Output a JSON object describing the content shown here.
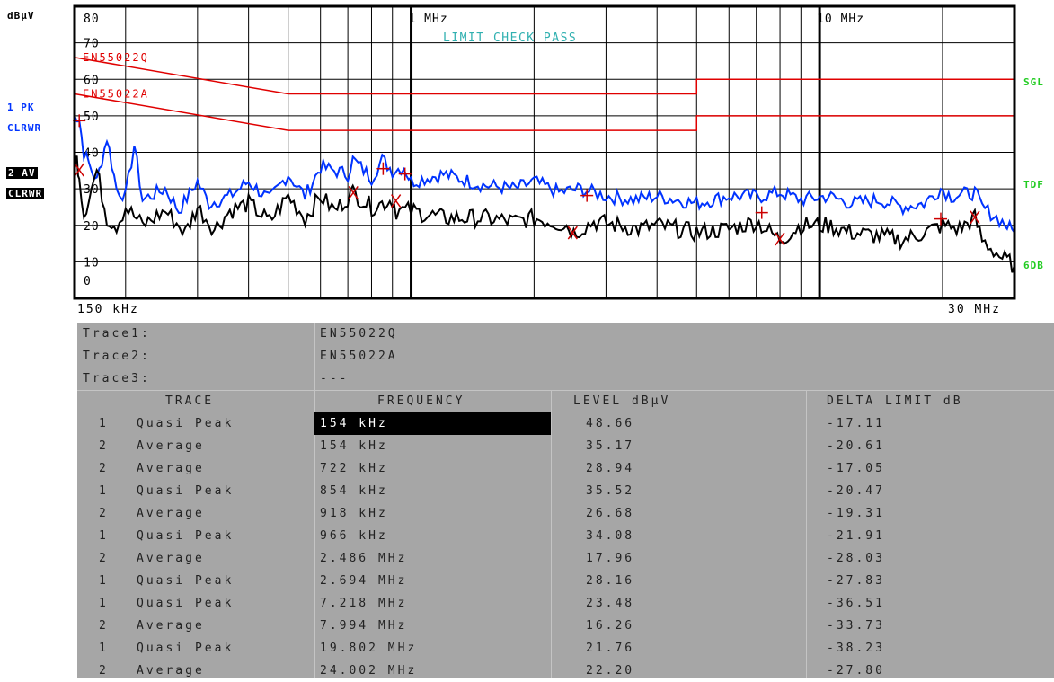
{
  "chart_data": {
    "type": "line",
    "title": "",
    "y_unit": "dBµV",
    "xscale": "log",
    "x_start": "150 kHz",
    "x_stop": "30 MHz",
    "xlim_mhz": [
      0.15,
      30
    ],
    "ylim": [
      0,
      80
    ],
    "y_ticks": [
      "80",
      "70",
      "60",
      "50",
      "40",
      "30",
      "20",
      "10",
      "0"
    ],
    "x_markers": [
      "1 MHz",
      "10 MHz"
    ],
    "banner": "LIMIT CHECK      PASS",
    "limit_lines": [
      {
        "name": "EN55022Q",
        "color": "#e00000",
        "points": [
          [
            0.15,
            66
          ],
          [
            0.5,
            56
          ],
          [
            5,
            56
          ],
          [
            5,
            60
          ],
          [
            30,
            60
          ]
        ]
      },
      {
        "name": "EN55022A",
        "color": "#e00000",
        "points": [
          [
            0.15,
            56
          ],
          [
            0.5,
            46
          ],
          [
            5,
            46
          ],
          [
            5,
            50
          ],
          [
            30,
            50
          ]
        ]
      }
    ],
    "series": [
      {
        "name": "1 PK CLRWR",
        "color": "#0033ff",
        "points": [
          [
            0.15,
            48
          ],
          [
            0.152,
            50
          ],
          [
            0.154,
            49
          ],
          [
            0.158,
            40
          ],
          [
            0.17,
            32
          ],
          [
            0.18,
            44
          ],
          [
            0.19,
            30
          ],
          [
            0.2,
            28
          ],
          [
            0.21,
            42
          ],
          [
            0.22,
            27
          ],
          [
            0.25,
            30
          ],
          [
            0.27,
            24
          ],
          [
            0.3,
            32
          ],
          [
            0.32,
            26
          ],
          [
            0.36,
            28
          ],
          [
            0.4,
            32
          ],
          [
            0.45,
            27
          ],
          [
            0.5,
            34
          ],
          [
            0.55,
            28
          ],
          [
            0.6,
            36
          ],
          [
            0.7,
            34
          ],
          [
            0.72,
            38
          ],
          [
            0.8,
            33
          ],
          [
            0.85,
            38
          ],
          [
            0.9,
            35
          ],
          [
            0.96,
            36
          ],
          [
            1.0,
            32
          ],
          [
            1.2,
            34
          ],
          [
            1.5,
            31
          ],
          [
            1.8,
            30
          ],
          [
            2.0,
            32
          ],
          [
            2.3,
            29
          ],
          [
            2.6,
            30
          ],
          [
            3.0,
            28
          ],
          [
            3.5,
            27
          ],
          [
            4.0,
            28
          ],
          [
            5.0,
            26
          ],
          [
            6.0,
            28
          ],
          [
            7.2,
            28
          ],
          [
            8.0,
            29
          ],
          [
            9.0,
            27
          ],
          [
            10.5,
            28
          ],
          [
            12,
            26
          ],
          [
            14,
            27
          ],
          [
            16,
            25
          ],
          [
            18,
            26
          ],
          [
            19.8,
            30
          ],
          [
            21,
            28
          ],
          [
            24,
            29
          ],
          [
            25,
            25
          ],
          [
            28,
            21
          ],
          [
            30,
            18
          ]
        ]
      },
      {
        "name": "2 AV CLRWR",
        "color": "#000000",
        "points": [
          [
            0.15,
            36
          ],
          [
            0.152,
            38
          ],
          [
            0.154,
            34
          ],
          [
            0.158,
            23
          ],
          [
            0.17,
            35
          ],
          [
            0.18,
            22
          ],
          [
            0.19,
            20
          ],
          [
            0.2,
            25
          ],
          [
            0.22,
            20
          ],
          [
            0.25,
            24
          ],
          [
            0.28,
            18
          ],
          [
            0.3,
            25
          ],
          [
            0.33,
            19
          ],
          [
            0.36,
            24
          ],
          [
            0.4,
            26
          ],
          [
            0.45,
            21
          ],
          [
            0.5,
            28
          ],
          [
            0.55,
            22
          ],
          [
            0.6,
            28
          ],
          [
            0.65,
            24
          ],
          [
            0.72,
            29
          ],
          [
            0.8,
            25
          ],
          [
            0.9,
            27
          ],
          [
            0.92,
            24
          ],
          [
            1.0,
            24
          ],
          [
            1.2,
            22
          ],
          [
            1.5,
            22
          ],
          [
            1.8,
            21
          ],
          [
            2.0,
            22
          ],
          [
            2.4,
            20
          ],
          [
            2.5,
            18
          ],
          [
            2.8,
            21
          ],
          [
            3.2,
            20
          ],
          [
            3.6,
            19
          ],
          [
            4.0,
            20
          ],
          [
            5.0,
            18
          ],
          [
            6.0,
            19
          ],
          [
            7.0,
            21
          ],
          [
            8.0,
            16
          ],
          [
            9.0,
            20
          ],
          [
            10.5,
            20
          ],
          [
            12,
            18
          ],
          [
            14,
            17
          ],
          [
            16,
            16
          ],
          [
            18,
            18
          ],
          [
            20,
            20
          ],
          [
            22,
            19
          ],
          [
            24,
            22
          ],
          [
            25,
            16
          ],
          [
            28,
            11
          ],
          [
            30,
            9
          ]
        ]
      }
    ],
    "markers": [
      {
        "trace": 1,
        "freq_mhz": 0.154,
        "level": 48.66,
        "symbol": "+"
      },
      {
        "trace": 2,
        "freq_mhz": 0.154,
        "level": 35.17,
        "symbol": "X"
      },
      {
        "trace": 2,
        "freq_mhz": 0.722,
        "level": 28.94,
        "symbol": "X"
      },
      {
        "trace": 1,
        "freq_mhz": 0.854,
        "level": 35.52,
        "symbol": "+"
      },
      {
        "trace": 2,
        "freq_mhz": 0.918,
        "level": 26.68,
        "symbol": "X"
      },
      {
        "trace": 1,
        "freq_mhz": 0.966,
        "level": 34.08,
        "symbol": "+"
      },
      {
        "trace": 2,
        "freq_mhz": 2.486,
        "level": 17.96,
        "symbol": "X"
      },
      {
        "trace": 1,
        "freq_mhz": 2.694,
        "level": 28.16,
        "symbol": "+"
      },
      {
        "trace": 1,
        "freq_mhz": 7.218,
        "level": 23.48,
        "symbol": "+"
      },
      {
        "trace": 2,
        "freq_mhz": 7.994,
        "level": 16.26,
        "symbol": "X"
      },
      {
        "trace": 1,
        "freq_mhz": 19.802,
        "level": 21.76,
        "symbol": "+"
      },
      {
        "trace": 2,
        "freq_mhz": 24.002,
        "level": 22.2,
        "symbol": "X"
      }
    ],
    "grid": true
  },
  "labels": {
    "y_unit": "dBµV",
    "trace1_line1": "1 PK",
    "trace1_line2": "CLRWR",
    "trace2_line1": "2 AV",
    "trace2_line2": "CLRWR",
    "right_sgl": "SGL",
    "right_tdf": "TDF",
    "right_6db": "6DB",
    "x_start": "150 kHz",
    "x_stop": "30 MHz"
  },
  "table": {
    "trace_defs": [
      {
        "label": "Trace1:",
        "value": "EN55022Q"
      },
      {
        "label": "Trace2:",
        "value": "EN55022A"
      },
      {
        "label": "Trace3:",
        "value": "---"
      }
    ],
    "headers": [
      "TRACE",
      "FREQUENCY",
      "LEVEL dBµV",
      "DELTA LIMIT dB"
    ],
    "rows": [
      {
        "trace": "1",
        "detector": "Quasi Peak",
        "freq": "154 kHz",
        "level": "48.66",
        "delta": "-17.11"
      },
      {
        "trace": "2",
        "detector": "Average",
        "freq": "154 kHz",
        "level": "35.17",
        "delta": "-20.61"
      },
      {
        "trace": "2",
        "detector": "Average",
        "freq": "722 kHz",
        "level": "28.94",
        "delta": "-17.05"
      },
      {
        "trace": "1",
        "detector": "Quasi Peak",
        "freq": "854 kHz",
        "level": "35.52",
        "delta": "-20.47"
      },
      {
        "trace": "2",
        "detector": "Average",
        "freq": "918 kHz",
        "level": "26.68",
        "delta": "-19.31"
      },
      {
        "trace": "1",
        "detector": "Quasi Peak",
        "freq": "966 kHz",
        "level": "34.08",
        "delta": "-21.91"
      },
      {
        "trace": "2",
        "detector": "Average",
        "freq": "2.486 MHz",
        "level": "17.96",
        "delta": "-28.03"
      },
      {
        "trace": "1",
        "detector": "Quasi Peak",
        "freq": "2.694 MHz",
        "level": "28.16",
        "delta": "-27.83"
      },
      {
        "trace": "1",
        "detector": "Quasi Peak",
        "freq": "7.218 MHz",
        "level": "23.48",
        "delta": "-36.51"
      },
      {
        "trace": "2",
        "detector": "Average",
        "freq": "7.994 MHz",
        "level": "16.26",
        "delta": "-33.73"
      },
      {
        "trace": "1",
        "detector": "Quasi Peak",
        "freq": "19.802 MHz",
        "level": "21.76",
        "delta": "-38.23"
      },
      {
        "trace": "2",
        "detector": "Average",
        "freq": "24.002 MHz",
        "level": "22.20",
        "delta": "-27.80"
      }
    ]
  },
  "colors": {
    "trace1": "#0033ff",
    "trace2": "#000000",
    "limit": "#e00000",
    "marker": "#cc0000",
    "banner": "#30b0b0",
    "side_green": "#22cc22",
    "side_blue": "#0033ff",
    "table_bg": "#a6a6a6"
  }
}
